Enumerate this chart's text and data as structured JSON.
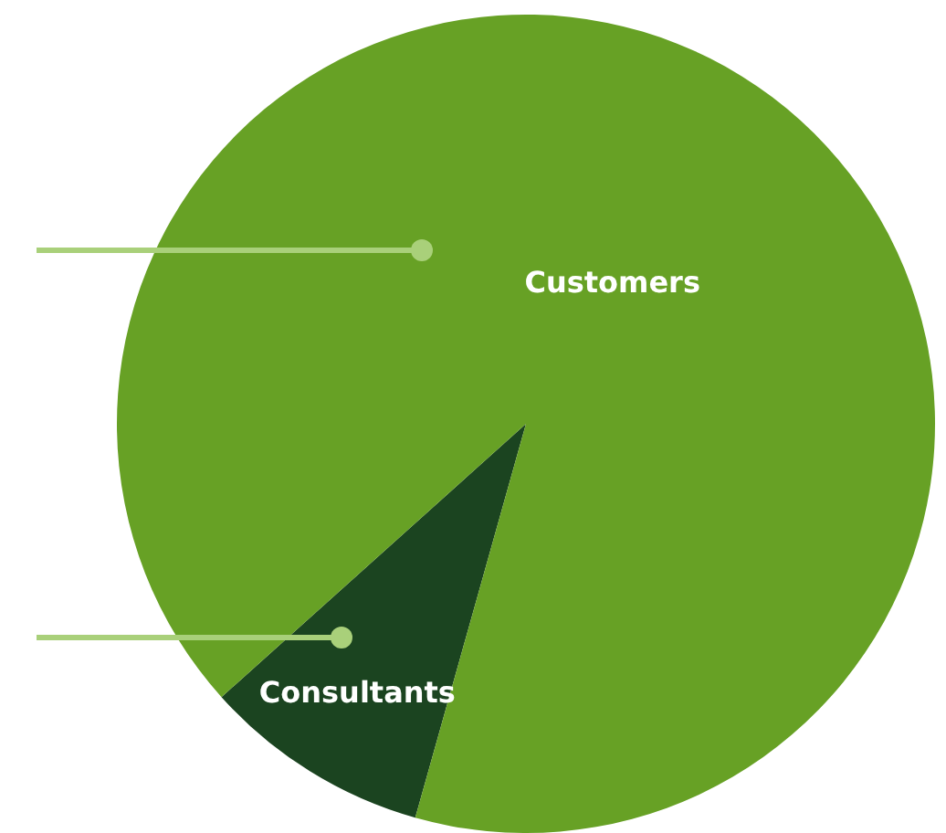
{
  "chart_data": {
    "type": "pie",
    "categories": [
      "Consultants",
      "Customers"
    ],
    "values": [
      9,
      91
    ],
    "colors": [
      "#1b4420",
      "#67a125"
    ]
  }
}
